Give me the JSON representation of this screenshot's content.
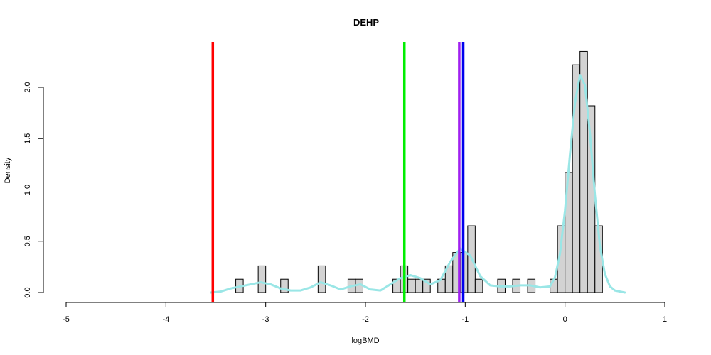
{
  "chart_data": {
    "type": "histogram",
    "title": "DEHP",
    "xlabel": "logBMD",
    "ylabel": "Density",
    "xlim": [
      -5,
      1
    ],
    "ylim": [
      0,
      2.4
    ],
    "xticks": [
      -5,
      -4,
      -3,
      -2,
      -1,
      0,
      1
    ],
    "yticks": [
      0.0,
      0.5,
      1.0,
      1.5,
      2.0
    ],
    "ytick_labels": [
      "0.0",
      "0.5",
      "1.0",
      "1.5",
      "2.0"
    ],
    "bin_width": 0.075,
    "bins": [
      {
        "x0": -3.3,
        "x1": -3.225,
        "density": 0.13
      },
      {
        "x0": -3.075,
        "x1": -3.0,
        "density": 0.26
      },
      {
        "x0": -2.85,
        "x1": -2.775,
        "density": 0.13
      },
      {
        "x0": -2.475,
        "x1": -2.4,
        "density": 0.26
      },
      {
        "x0": -2.175,
        "x1": -2.1,
        "density": 0.13
      },
      {
        "x0": -2.1,
        "x1": -2.025,
        "density": 0.13
      },
      {
        "x0": -1.725,
        "x1": -1.65,
        "density": 0.13
      },
      {
        "x0": -1.65,
        "x1": -1.575,
        "density": 0.26
      },
      {
        "x0": -1.575,
        "x1": -1.5,
        "density": 0.13
      },
      {
        "x0": -1.5,
        "x1": -1.425,
        "density": 0.13
      },
      {
        "x0": -1.425,
        "x1": -1.35,
        "density": 0.13
      },
      {
        "x0": -1.275,
        "x1": -1.2,
        "density": 0.13
      },
      {
        "x0": -1.2,
        "x1": -1.125,
        "density": 0.26
      },
      {
        "x0": -1.125,
        "x1": -1.05,
        "density": 0.39
      },
      {
        "x0": -1.05,
        "x1": -0.975,
        "density": 0.39
      },
      {
        "x0": -0.975,
        "x1": -0.9,
        "density": 0.65
      },
      {
        "x0": -0.9,
        "x1": -0.825,
        "density": 0.13
      },
      {
        "x0": -0.675,
        "x1": -0.6,
        "density": 0.13
      },
      {
        "x0": -0.525,
        "x1": -0.45,
        "density": 0.13
      },
      {
        "x0": -0.375,
        "x1": -0.3,
        "density": 0.13
      },
      {
        "x0": -0.15,
        "x1": -0.075,
        "density": 0.13
      },
      {
        "x0": -0.075,
        "x1": 0.0,
        "density": 0.65
      },
      {
        "x0": 0.0,
        "x1": 0.075,
        "density": 1.17
      },
      {
        "x0": 0.075,
        "x1": 0.15,
        "density": 2.22
      },
      {
        "x0": 0.15,
        "x1": 0.225,
        "density": 2.35
      },
      {
        "x0": 0.225,
        "x1": 0.3,
        "density": 1.82
      },
      {
        "x0": 0.3,
        "x1": 0.375,
        "density": 0.65
      }
    ],
    "density_curve": {
      "color": "#9ae6e6",
      "x": [
        -3.55,
        -3.45,
        -3.35,
        -3.25,
        -3.15,
        -3.05,
        -2.95,
        -2.85,
        -2.75,
        -2.65,
        -2.55,
        -2.45,
        -2.35,
        -2.25,
        -2.15,
        -2.05,
        -1.95,
        -1.85,
        -1.75,
        -1.65,
        -1.55,
        -1.45,
        -1.35,
        -1.25,
        -1.15,
        -1.05,
        -0.95,
        -0.85,
        -0.75,
        -0.65,
        -0.55,
        -0.45,
        -0.35,
        -0.25,
        -0.15,
        -0.1,
        -0.05,
        0.0,
        0.05,
        0.1,
        0.15,
        0.2,
        0.25,
        0.3,
        0.35,
        0.4,
        0.45,
        0.5,
        0.55,
        0.6
      ],
      "y": [
        0.0,
        0.01,
        0.04,
        0.06,
        0.08,
        0.1,
        0.08,
        0.04,
        0.02,
        0.02,
        0.05,
        0.1,
        0.07,
        0.03,
        0.06,
        0.08,
        0.03,
        0.02,
        0.08,
        0.14,
        0.17,
        0.14,
        0.08,
        0.12,
        0.3,
        0.43,
        0.36,
        0.16,
        0.07,
        0.06,
        0.06,
        0.07,
        0.07,
        0.05,
        0.06,
        0.15,
        0.38,
        0.8,
        1.35,
        1.85,
        2.12,
        2.02,
        1.55,
        0.95,
        0.45,
        0.18,
        0.06,
        0.02,
        0.01,
        0.0
      ]
    },
    "vertical_lines": [
      {
        "x": -3.53,
        "color": "#ff0000"
      },
      {
        "x": -1.61,
        "color": "#00ee00"
      },
      {
        "x": -1.06,
        "color": "#a020f0"
      },
      {
        "x": -1.02,
        "color": "#0000ee"
      }
    ],
    "grid": false,
    "legend": "none"
  }
}
